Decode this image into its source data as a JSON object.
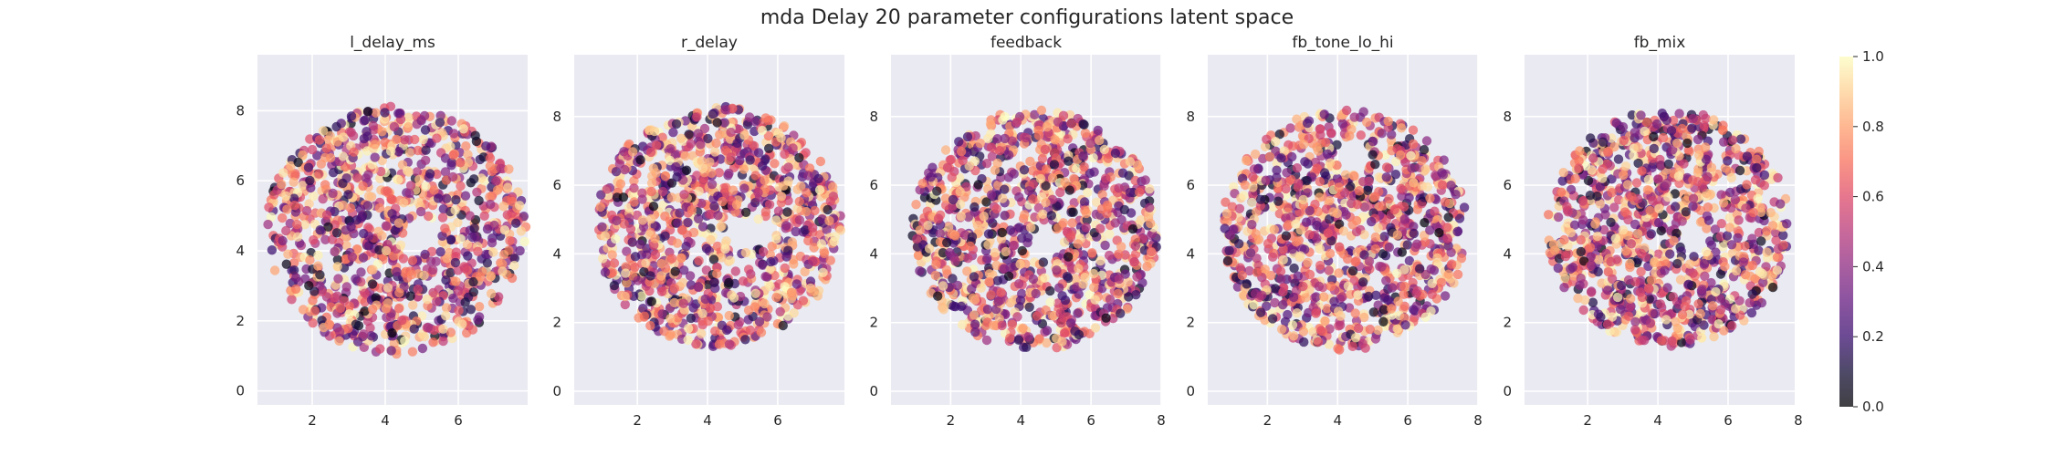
{
  "figure_title": "mda Delay 20 parameter configurations latent space",
  "chart_data": [
    {
      "type": "scatter",
      "title": "l_delay_ms",
      "xlabel": "",
      "ylabel": "",
      "xlim": [
        0.5,
        7.9
      ],
      "ylim": [
        -0.4,
        9.6
      ],
      "xticks": [
        2,
        4,
        6
      ],
      "yticks": [
        0,
        2,
        4,
        6,
        8
      ],
      "grid": true,
      "colormap": "magma",
      "color_range": [
        0.0,
        1.0
      ],
      "point_cloud": {
        "shape": "disk",
        "center": [
          4.3,
          4.6
        ],
        "radius": 3.55,
        "hole_center": [
          5.0,
          4.4
        ],
        "hole_radius": 0.5
      }
    },
    {
      "type": "scatter",
      "title": "r_delay",
      "xlabel": "",
      "ylabel": "",
      "xlim": [
        0.2,
        7.9
      ],
      "ylim": [
        -0.4,
        9.8
      ],
      "xticks": [
        2,
        4,
        6
      ],
      "yticks": [
        0,
        2,
        4,
        6,
        8
      ],
      "grid": true,
      "colormap": "magma",
      "color_range": [
        0.0,
        1.0
      ],
      "point_cloud": {
        "shape": "disk",
        "center": [
          4.3,
          4.8
        ],
        "radius": 3.5,
        "hole_center": [
          5.0,
          4.6
        ],
        "hole_radius": 0.5
      }
    },
    {
      "type": "scatter",
      "title": "feedback",
      "xlabel": "",
      "ylabel": "",
      "xlim": [
        0.3,
        8.0
      ],
      "ylim": [
        -0.4,
        9.8
      ],
      "xticks": [
        2,
        4,
        6,
        8
      ],
      "yticks": [
        0,
        2,
        4,
        6,
        8
      ],
      "grid": true,
      "colormap": "magma",
      "color_range": [
        0.0,
        1.0
      ],
      "point_cloud": {
        "shape": "disk",
        "center": [
          4.4,
          4.7
        ],
        "radius": 3.5,
        "hole_center": [
          4.7,
          4.3
        ],
        "hole_radius": 0.5
      }
    },
    {
      "type": "scatter",
      "title": "fb_tone_lo_hi",
      "xlabel": "",
      "ylabel": "",
      "xlim": [
        0.3,
        8.0
      ],
      "ylim": [
        -0.4,
        9.8
      ],
      "xticks": [
        2,
        4,
        6,
        8
      ],
      "yticks": [
        0,
        2,
        4,
        6,
        8
      ],
      "grid": true,
      "colormap": "magma",
      "color_range": [
        0.0,
        1.0
      ],
      "point_cloud": {
        "shape": "disk",
        "center": [
          4.2,
          4.7
        ],
        "radius": 3.5,
        "hole_center": [
          4.5,
          6.8
        ],
        "hole_radius": 0.5
      }
    },
    {
      "type": "scatter",
      "title": "fb_mix",
      "xlabel": "",
      "ylabel": "",
      "xlim": [
        0.2,
        7.9
      ],
      "ylim": [
        -0.4,
        9.8
      ],
      "xticks": [
        2,
        4,
        6,
        8
      ],
      "yticks": [
        0,
        2,
        4,
        6,
        8
      ],
      "grid": true,
      "colormap": "magma",
      "color_range": [
        0.0,
        1.0
      ],
      "point_cloud": {
        "shape": "disk",
        "center": [
          4.3,
          4.75
        ],
        "radius": 3.45,
        "hole_center": [
          5.0,
          4.5
        ],
        "hole_radius": 0.45
      }
    }
  ],
  "colorbar": {
    "ticks": [
      "0.0",
      "0.2",
      "0.4",
      "0.6",
      "0.8",
      "1.0"
    ],
    "range": [
      0.0,
      1.0
    ],
    "colormap": "magma"
  },
  "colors": {
    "plot_background": "#eaeaf2",
    "grid": "#ffffff",
    "text": "#262626"
  }
}
